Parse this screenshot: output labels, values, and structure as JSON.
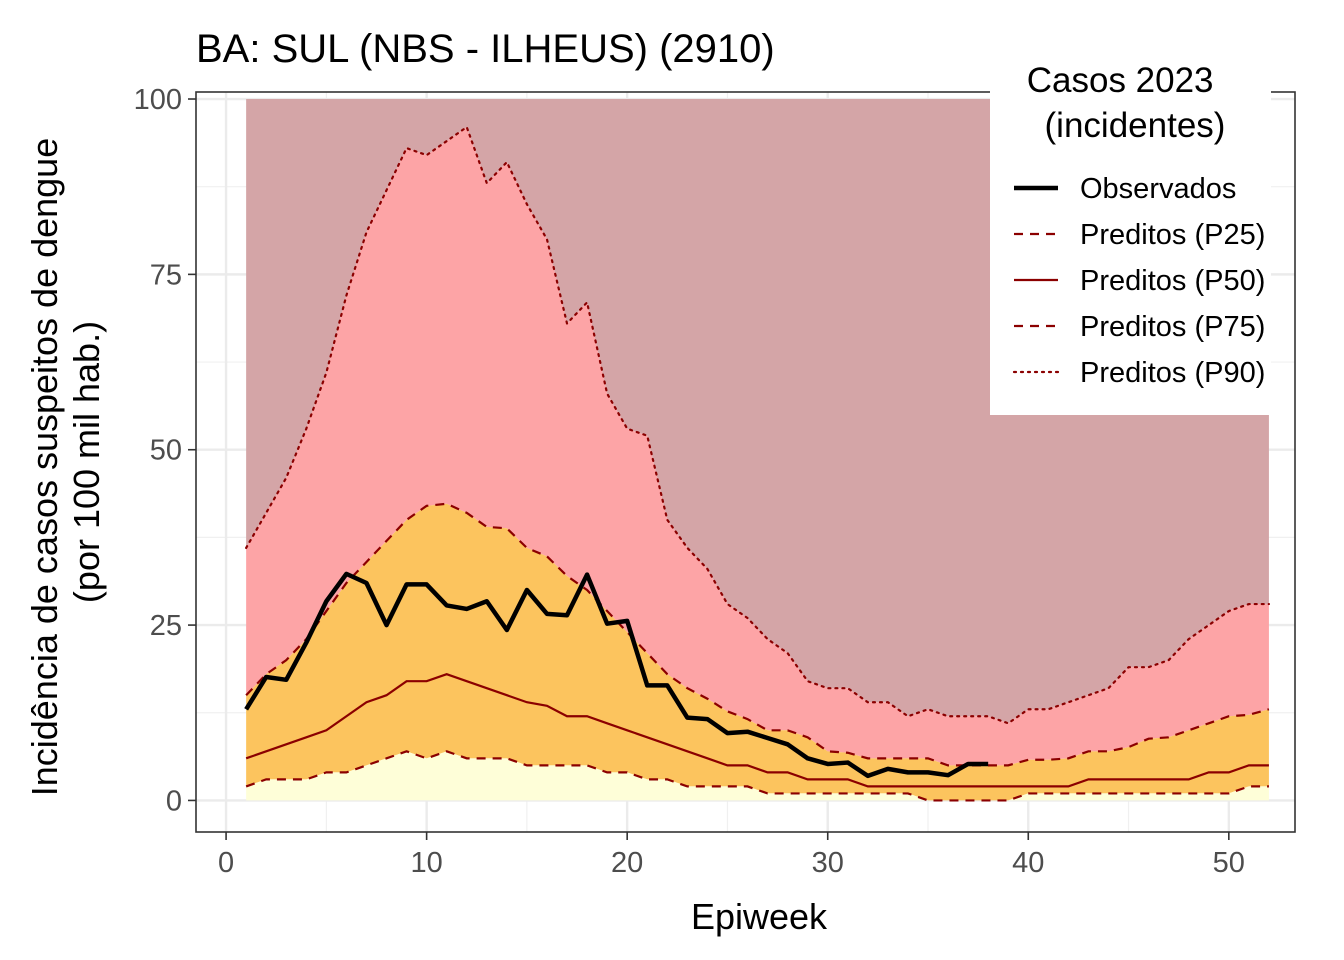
{
  "chart_data": {
    "type": "area",
    "title": "BA: SUL (NBS - ILHEUS) (2910)",
    "xlabel": "Epiweek",
    "ylabel_line1": "Incidência de casos suspeitos de dengue",
    "ylabel_line2": "(por 100 mil hab.)",
    "xlim": [
      -1.5,
      53.3
    ],
    "ylim": [
      -4.5,
      101
    ],
    "x_ticks": [
      0,
      10,
      20,
      30,
      40,
      50
    ],
    "y_ticks": [
      0,
      25,
      50,
      75,
      100
    ],
    "grid": true,
    "legend": {
      "placement": "top-right",
      "title_line1": "Casos 2023",
      "title_line2": "(incidentes)",
      "entries": [
        {
          "label": "Observados",
          "style": "solid-thick",
          "color": "#000000"
        },
        {
          "label": "Preditos (P25)",
          "style": "dashed",
          "color": "#8b0000"
        },
        {
          "label": "Preditos (P50)",
          "style": "solid",
          "color": "#8b0000"
        },
        {
          "label": "Preditos (P75)",
          "style": "dashed",
          "color": "#8b0000"
        },
        {
          "label": "Preditos (P90)",
          "style": "dotted",
          "color": "#8b0000"
        }
      ]
    },
    "colors": {
      "band_above_p90": "#d4a5a7",
      "band_p75_p90": "#fda4a6",
      "band_p25_p75": "#fcc45e",
      "band_below_p25": "#fefed8",
      "predicted_line": "#8b0000",
      "observed_line": "#000000"
    },
    "band_top": 100,
    "weeks": [
      1,
      2,
      3,
      4,
      5,
      6,
      7,
      8,
      9,
      10,
      11,
      12,
      13,
      14,
      15,
      16,
      17,
      18,
      19,
      20,
      21,
      22,
      23,
      24,
      25,
      26,
      27,
      28,
      29,
      30,
      31,
      32,
      33,
      34,
      35,
      36,
      37,
      38,
      39,
      40,
      41,
      42,
      43,
      44,
      45,
      46,
      47,
      48,
      49,
      50,
      51,
      52
    ],
    "series": [
      {
        "name": "Preditos (P25)",
        "values": [
          2,
          3,
          3,
          3,
          4,
          4,
          5,
          6,
          7,
          6,
          7,
          6,
          6,
          6,
          5,
          5,
          5,
          5,
          4,
          4,
          3,
          3,
          2,
          2,
          2,
          2,
          1,
          1,
          1,
          1,
          1,
          1,
          1,
          1,
          0,
          0,
          0,
          0,
          0,
          1,
          1,
          1,
          1,
          1,
          1,
          1,
          1,
          1,
          1,
          1,
          2,
          2
        ]
      },
      {
        "name": "Preditos (P50)",
        "values": [
          6,
          7,
          8,
          9,
          10,
          12,
          14,
          15,
          17,
          17,
          18,
          17,
          16,
          15,
          14,
          13.5,
          12,
          12,
          11,
          10,
          9,
          8,
          7,
          6,
          5,
          5,
          4,
          4,
          3,
          3,
          3,
          2,
          2,
          2,
          2,
          2,
          2,
          2,
          2,
          2,
          2,
          2,
          3,
          3,
          3,
          3,
          3,
          3,
          4,
          4,
          5,
          5
        ]
      },
      {
        "name": "Preditos (P75)",
        "values": [
          15,
          18,
          20,
          23,
          27,
          31,
          34,
          37,
          40,
          42,
          42.3,
          41,
          39,
          38.8,
          36,
          34.8,
          32,
          30,
          27,
          24,
          21,
          18,
          16,
          14.5,
          12.7,
          11.6,
          10,
          10,
          9,
          7,
          6.8,
          6,
          6,
          6,
          6,
          5,
          5,
          5,
          5,
          5.8,
          5.8,
          6,
          7,
          7,
          7.6,
          8.8,
          9,
          10,
          11,
          12,
          12.2,
          13
        ]
      },
      {
        "name": "Preditos (P90)",
        "values": [
          36,
          41,
          46,
          53,
          61,
          72,
          81,
          87,
          93,
          92,
          94,
          96,
          88,
          91,
          85,
          80,
          68,
          71,
          58,
          53,
          52,
          40,
          36,
          33,
          28,
          26,
          23,
          21,
          17,
          16,
          16,
          14,
          14,
          12,
          13,
          12,
          12,
          12,
          11,
          13,
          13,
          14,
          15,
          16,
          19,
          19,
          20,
          23,
          25,
          27,
          28,
          28
        ]
      },
      {
        "name": "Observados",
        "values": [
          13,
          17.6,
          17.2,
          22.5,
          28.4,
          32.3,
          31,
          25,
          30.8,
          30.8,
          27.8,
          27.3,
          28.4,
          24.3,
          30,
          26.6,
          26.4,
          32.2,
          25.2,
          25.6,
          16.4,
          16.4,
          11.8,
          11.6,
          9.6,
          9.8,
          8.9,
          8,
          6,
          5.2,
          5.4,
          3.5,
          4.5,
          4,
          4,
          3.6,
          5.2,
          5.2
        ]
      }
    ]
  }
}
